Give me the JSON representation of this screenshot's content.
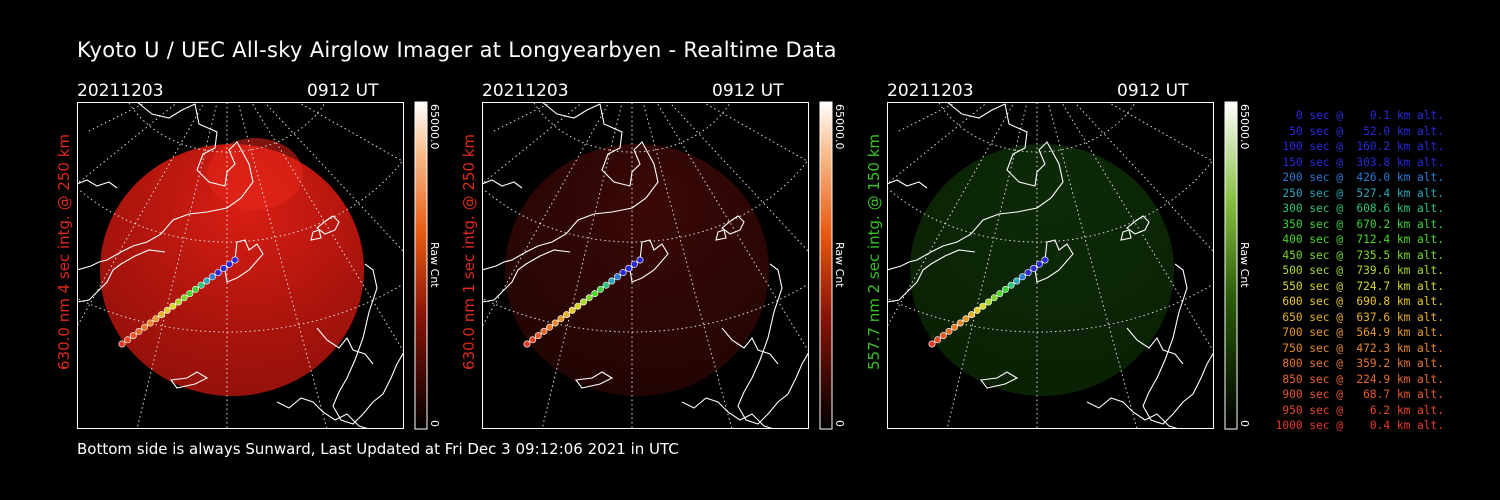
{
  "title": "Kyoto U / UEC All-sky Airglow Imager at Longyearbyen - Realtime Data",
  "footer": "Bottom side is always Sunward, Last Updated at Fri Dec  3 09:12:06 2021 in UTC",
  "panels": [
    {
      "date": "20211203",
      "time": "0912 UT",
      "side_label": "630.0 nm 4 sec intg. @ 250 km",
      "side_color": "#dd2a1a",
      "colorbar_max": "65000.0",
      "colorbar_min": "0",
      "colorbar_unit": "Raw Cnt",
      "theme": "red",
      "glow": "strong"
    },
    {
      "date": "20211203",
      "time": "0912 UT",
      "side_label": "630.0 nm 1 sec intg. @ 250 km",
      "side_color": "#dd2a1a",
      "colorbar_max": "65000.0",
      "colorbar_min": "0",
      "colorbar_unit": "Raw Cnt",
      "theme": "red",
      "glow": "faint"
    },
    {
      "date": "20211203",
      "time": "0912 UT",
      "side_label": "557.7 nm 2 sec intg. @ 150 km",
      "side_color": "#38c225",
      "colorbar_max": "65000.0",
      "colorbar_min": "0",
      "colorbar_unit": "Raw Cnt",
      "theme": "green",
      "glow": "faint"
    }
  ],
  "legend": [
    {
      "text": "   0 sec @    0.1 km alt.",
      "color": "#2a2ad8"
    },
    {
      "text": "  50 sec @   52.0 km alt.",
      "color": "#2a2ad8"
    },
    {
      "text": " 100 sec @  160.2 km alt.",
      "color": "#2a2ad8"
    },
    {
      "text": " 150 sec @  303.8 km alt.",
      "color": "#2a2ad8"
    },
    {
      "text": " 200 sec @  426.0 km alt.",
      "color": "#2a7ad8"
    },
    {
      "text": " 250 sec @  527.4 km alt.",
      "color": "#2aa6b8"
    },
    {
      "text": " 300 sec @  608.6 km alt.",
      "color": "#2ac47a"
    },
    {
      "text": " 350 sec @  670.2 km alt.",
      "color": "#3ad23a"
    },
    {
      "text": " 400 sec @  712.4 km alt.",
      "color": "#4ad82a"
    },
    {
      "text": " 450 sec @  735.5 km alt.",
      "color": "#7ad82a"
    },
    {
      "text": " 500 sec @  739.6 km alt.",
      "color": "#a8d82a"
    },
    {
      "text": " 550 sec @  724.7 km alt.",
      "color": "#d8d82a"
    },
    {
      "text": " 600 sec @  690.8 km alt.",
      "color": "#e8c82a"
    },
    {
      "text": " 650 sec @  637.6 km alt.",
      "color": "#e8b02a"
    },
    {
      "text": " 700 sec @  564.9 km alt.",
      "color": "#e8982a"
    },
    {
      "text": " 750 sec @  472.3 km alt.",
      "color": "#e8882a"
    },
    {
      "text": " 800 sec @  359.2 km alt.",
      "color": "#e8782a"
    },
    {
      "text": " 850 sec @  224.9 km alt.",
      "color": "#e8682a"
    },
    {
      "text": " 900 sec @   68.7 km alt.",
      "color": "#e8582a"
    },
    {
      "text": " 950 sec @    6.2 km alt.",
      "color": "#e8482a"
    },
    {
      "text": "1000 sec @    0.4 km alt.",
      "color": "#e8382a"
    }
  ]
}
